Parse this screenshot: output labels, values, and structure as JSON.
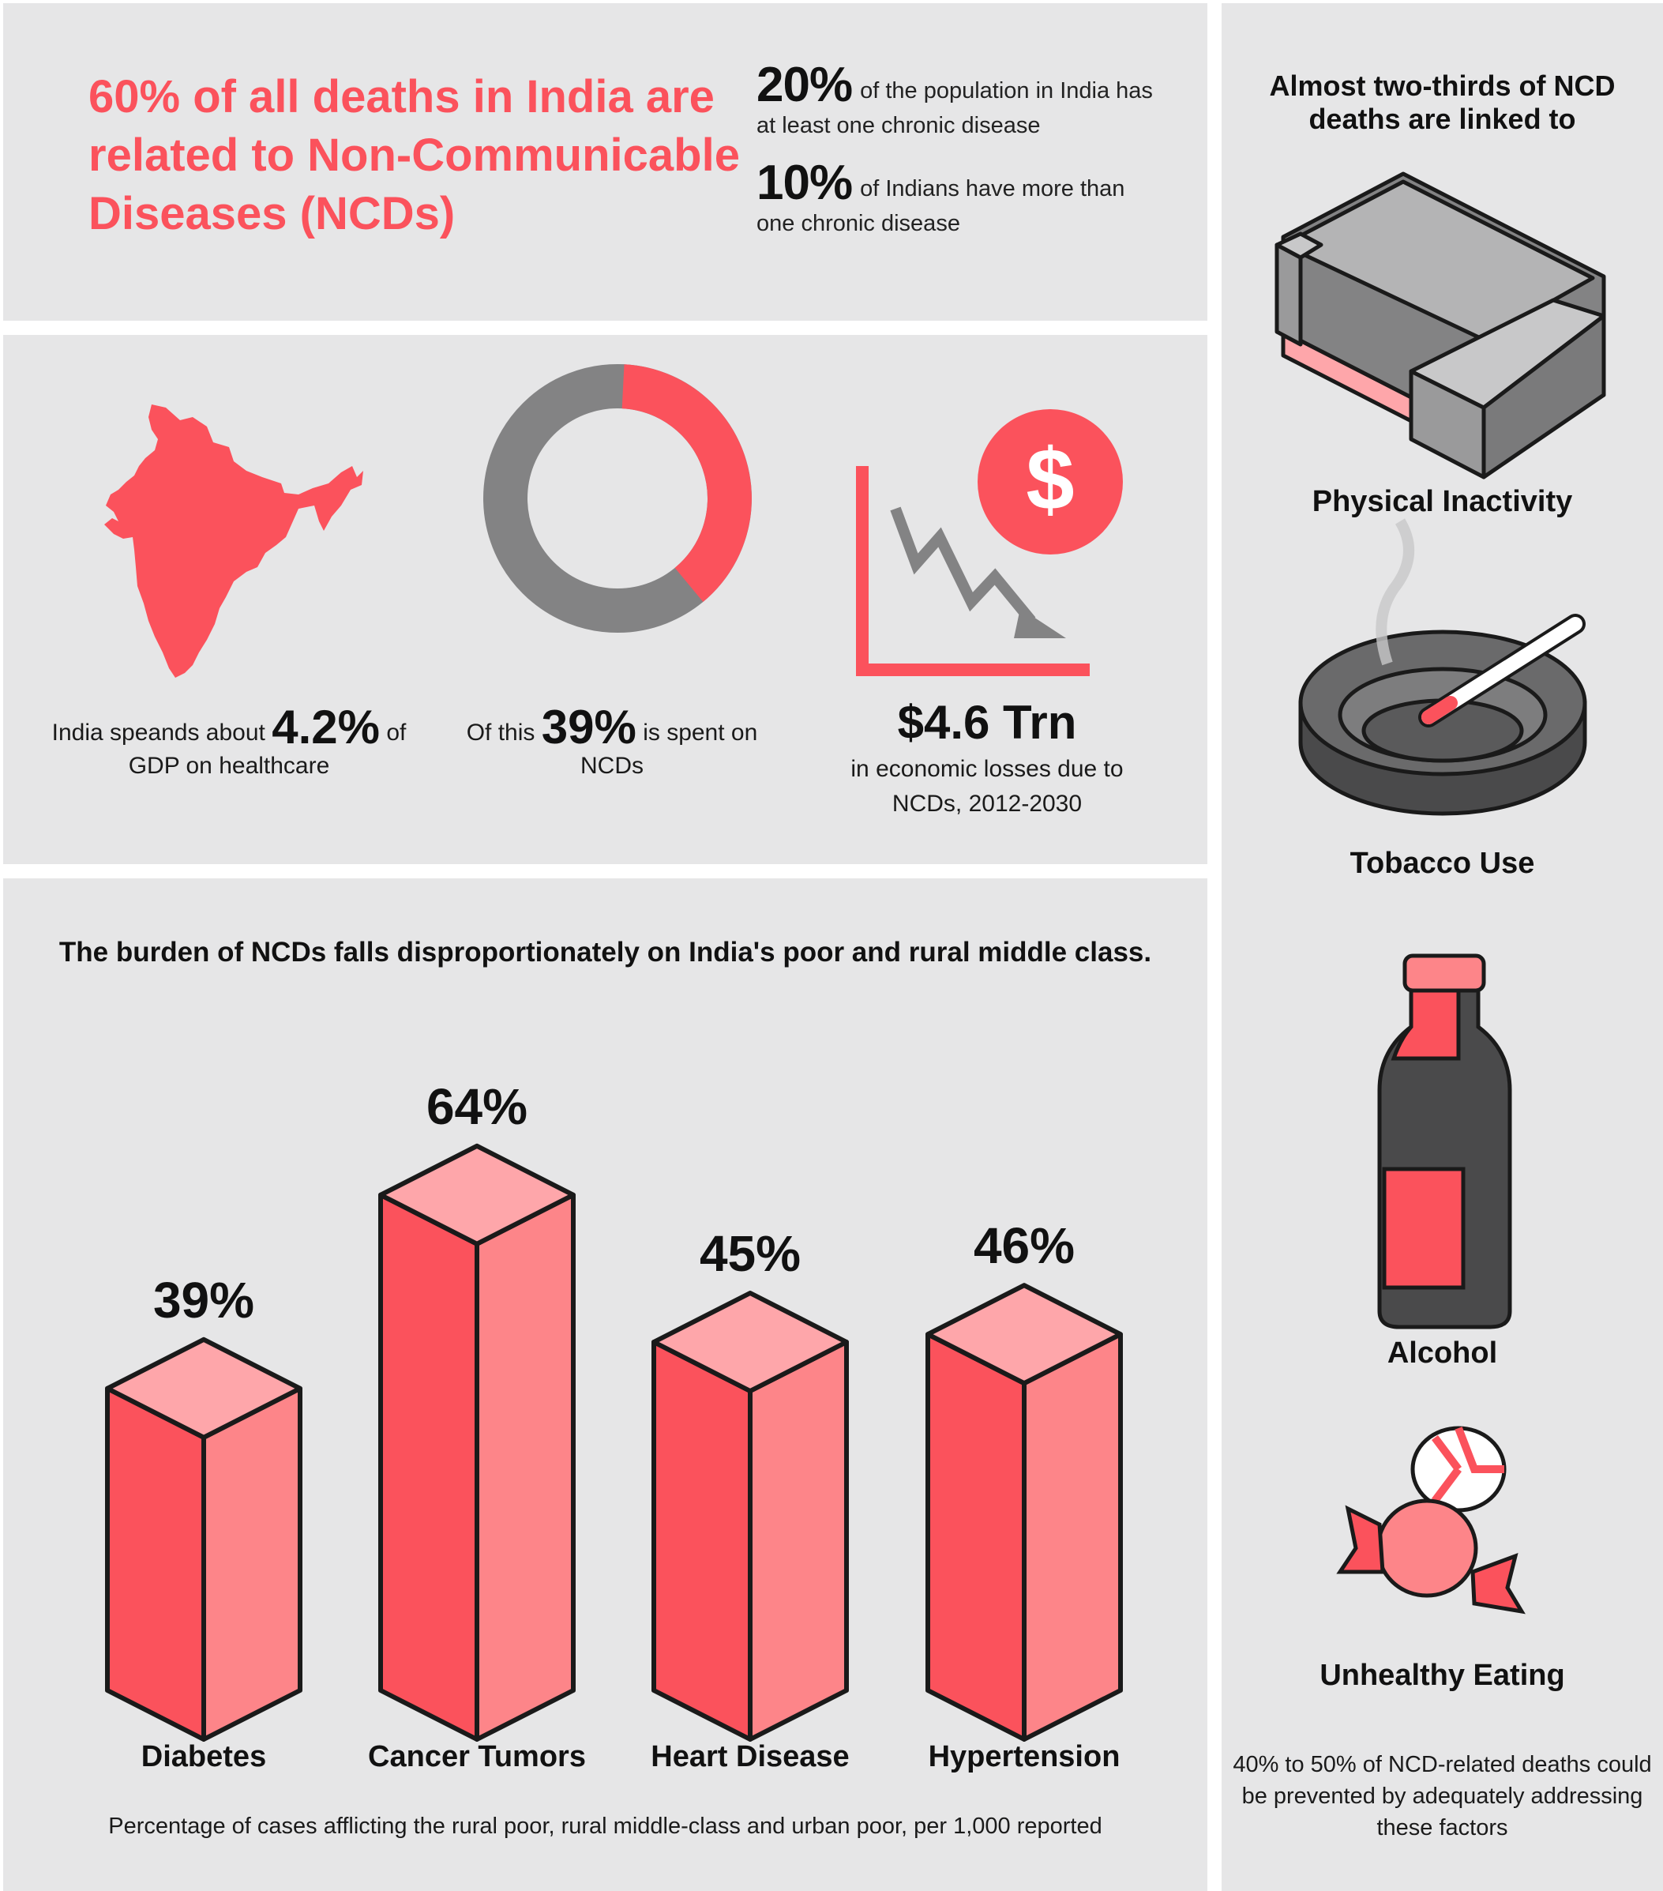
{
  "header": {
    "headline": "60% of all deaths in India are related to Non-Communicable Diseases (NCDs)",
    "stats": [
      {
        "value": "20%",
        "text": "of the population in India has at least one chronic disease"
      },
      {
        "value": "10%",
        "text": "of Indians have more than one chronic disease"
      }
    ]
  },
  "spending": {
    "gdp": {
      "prefix": "India speands about",
      "value": "4.2%",
      "suffix": "of GDP on healthcare"
    },
    "ncd_share": {
      "prefix": "Of this",
      "value": "39%",
      "suffix": "is spent on NCDs",
      "fraction": 0.39
    },
    "losses": {
      "value": "$4.6 Trn",
      "text": "in economic losses due to NCDs, 2012-2030"
    },
    "colors": {
      "accent": "#fb525c",
      "gray": "#838384"
    }
  },
  "chart_data": {
    "type": "bar",
    "title": "The burden of NCDs falls disproportionately on India's poor and rural middle class.",
    "categories": [
      "Diabetes",
      "Cancer Tumors",
      "Heart Disease",
      "Hypertension"
    ],
    "values": [
      39,
      64,
      45,
      46
    ],
    "value_labels": [
      "39%",
      "64%",
      "45%",
      "46%"
    ],
    "unit": "%",
    "note": "Percentage of cases afflicting the rural poor, rural middle-class and urban poor, per 1,000 reported",
    "colors": {
      "front": "#fb525c",
      "side": "#fd8589",
      "top": "#fea6aa",
      "outline": "#1a1a1a"
    }
  },
  "risk_factors": {
    "title": "Almost two-thirds of NCD deaths are linked to",
    "items": [
      {
        "label": "Physical Inactivity",
        "icon": "sofa-icon"
      },
      {
        "label": "Tobacco Use",
        "icon": "ashtray-icon"
      },
      {
        "label": "Alcohol",
        "icon": "bottle-icon"
      },
      {
        "label": "Unhealthy Eating",
        "icon": "candy-icon"
      }
    ],
    "note": "40% to 50% of NCD-related deaths could be prevented by adequately addressing these factors"
  }
}
